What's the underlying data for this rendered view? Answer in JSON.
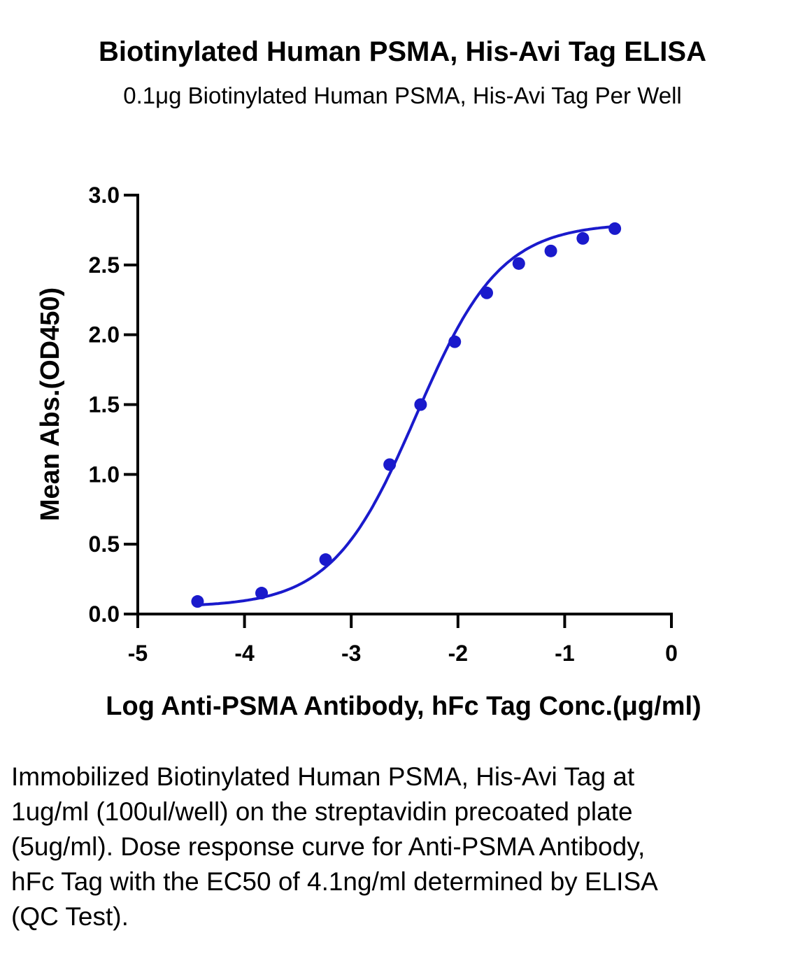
{
  "chart_data": {
    "type": "scatter",
    "title": "Biotinylated Human PSMA, His-Avi Tag ELISA",
    "subtitle": "0.1μg Biotinylated Human PSMA, His-Avi Tag Per Well",
    "xlabel": "Log Anti-PSMA Antibody, hFc Tag Conc.(μg/ml)",
    "ylabel": "Mean Abs.(OD450)",
    "xlim": [
      -5,
      0
    ],
    "ylim": [
      0,
      3.0
    ],
    "xticks": [
      "-5",
      "-4",
      "-3",
      "-2",
      "-1",
      "0"
    ],
    "yticks": [
      "0.0",
      "0.5",
      "1.0",
      "1.5",
      "2.0",
      "2.5",
      "3.0"
    ],
    "grid": false,
    "color": "#1a1acc",
    "fit": "sigmoidal dose-response curve",
    "points": [
      {
        "x": -4.44,
        "y": 0.09
      },
      {
        "x": -3.84,
        "y": 0.15
      },
      {
        "x": -3.24,
        "y": 0.39
      },
      {
        "x": -2.64,
        "y": 1.07
      },
      {
        "x": -2.35,
        "y": 1.5
      },
      {
        "x": -2.03,
        "y": 1.95
      },
      {
        "x": -1.73,
        "y": 2.3
      },
      {
        "x": -1.43,
        "y": 2.51
      },
      {
        "x": -1.13,
        "y": 2.6
      },
      {
        "x": -0.83,
        "y": 2.69
      },
      {
        "x": -0.53,
        "y": 2.76
      }
    ]
  },
  "caption": "Immobilized Biotinylated Human PSMA, His-Avi Tag at 1ug/ml (100ul/well) on the streptavidin precoated plate (5ug/ml). Dose response curve for Anti-PSMA Antibody, hFc Tag with the EC50 of 4.1ng/ml determined by ELISA (QC Test)."
}
